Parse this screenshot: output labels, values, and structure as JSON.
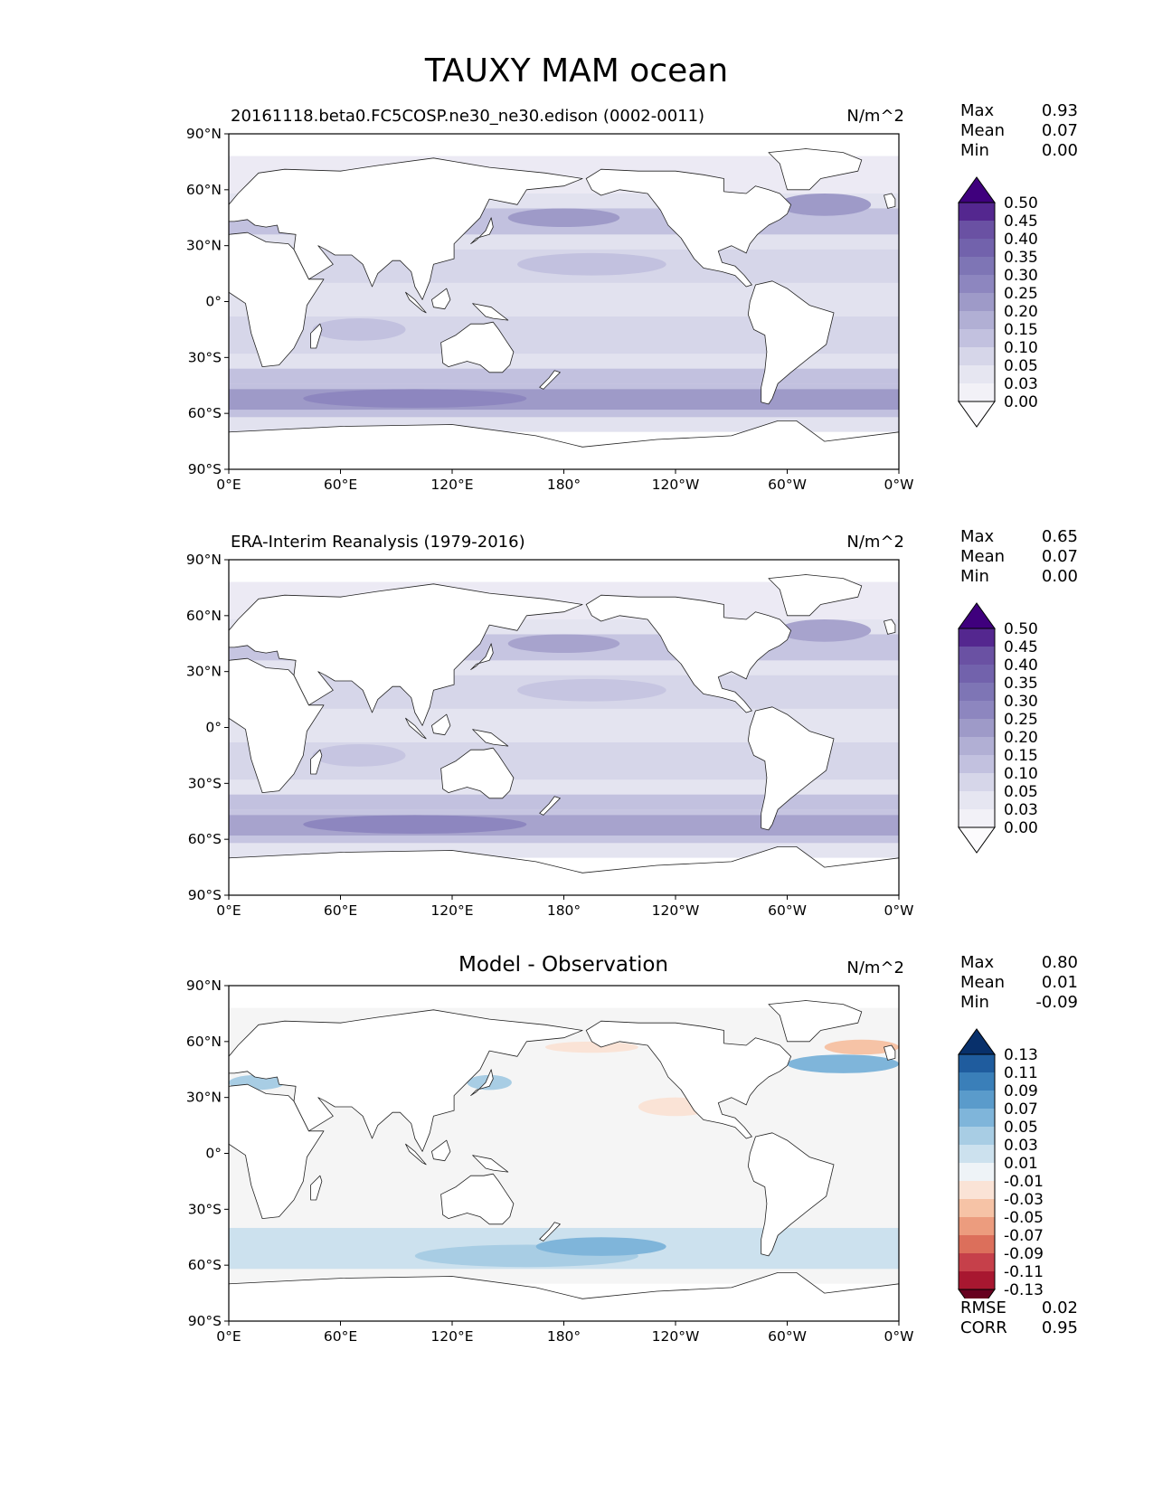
{
  "figure": {
    "title": "TAUXY MAM ocean"
  },
  "axes": {
    "lat_labels": [
      "90°N",
      "60°N",
      "30°N",
      "0°",
      "30°S",
      "60°S",
      "90°S"
    ],
    "lon_labels": [
      "0°E",
      "60°E",
      "120°E",
      "180°",
      "120°W",
      "60°W",
      "0°W"
    ]
  },
  "panels": [
    {
      "title": "20161118.beta0.FC5COSP.ne30_ne30.edison (0002-0011)",
      "units": "N/m^2",
      "stats": [
        {
          "label": "Max",
          "value": "0.93"
        },
        {
          "label": "Mean",
          "value": "0.07"
        },
        {
          "label": "Min",
          "value": "0.00"
        }
      ],
      "colorbar": {
        "levels": [
          "0.50",
          "0.45",
          "0.40",
          "0.35",
          "0.30",
          "0.25",
          "0.20",
          "0.15",
          "0.10",
          "0.05",
          "0.03",
          "0.00"
        ],
        "colors": [
          "#3f007d",
          "#54278f",
          "#6a51a3",
          "#7262ac",
          "#7e75b5",
          "#8d86bf",
          "#9e9ac8",
          "#b1afd4",
          "#c2c1df",
          "#d6d6e9",
          "#e6e6f1",
          "#f2f1f7",
          "#fcfbfd"
        ]
      },
      "map": {
        "style": "tau",
        "storm_track_level": "#9e9ac8",
        "band_level": "#c2c1df",
        "background": "#e2e2ef"
      }
    },
    {
      "title": "ERA-Interim Reanalysis (1979-2016)",
      "units": "N/m^2",
      "stats": [
        {
          "label": "Max",
          "value": "0.65"
        },
        {
          "label": "Mean",
          "value": "0.07"
        },
        {
          "label": "Min",
          "value": "0.00"
        }
      ],
      "colorbar": {
        "levels": [
          "0.50",
          "0.45",
          "0.40",
          "0.35",
          "0.30",
          "0.25",
          "0.20",
          "0.15",
          "0.10",
          "0.05",
          "0.03",
          "0.00"
        ],
        "colors": [
          "#3f007d",
          "#54278f",
          "#6a51a3",
          "#7262ac",
          "#7e75b5",
          "#8d86bf",
          "#9e9ac8",
          "#b1afd4",
          "#c2c1df",
          "#d6d6e9",
          "#e6e6f1",
          "#f2f1f7",
          "#fcfbfd"
        ]
      },
      "map": {
        "style": "tau",
        "storm_track_level": "#a7a3cd",
        "band_level": "#c6c5e1",
        "background": "#e4e4f0"
      }
    },
    {
      "title": "Model - Observation",
      "units": "N/m^2",
      "stats": [
        {
          "label": "Max",
          "value": "0.80"
        },
        {
          "label": "Mean",
          "value": "0.01"
        },
        {
          "label": "Min",
          "value": "-0.09"
        }
      ],
      "colorbar": {
        "levels": [
          "0.13",
          "0.11",
          "0.09",
          "0.07",
          "0.05",
          "0.03",
          "0.01",
          "-0.01",
          "-0.03",
          "-0.05",
          "-0.07",
          "-0.09",
          "-0.11",
          "-0.13"
        ],
        "colors": [
          "#08306b",
          "#1f5c9e",
          "#3a7fb9",
          "#5a9bcb",
          "#7fb5da",
          "#a8cde4",
          "#cce1ee",
          "#eef3f7",
          "#fae3d6",
          "#f6c3a6",
          "#ec9c7e",
          "#dc6f5b",
          "#c6404a",
          "#a81730",
          "#67001f"
        ]
      },
      "map": {
        "style": "diff",
        "background": "#f5f5f5"
      },
      "footer": [
        {
          "label": "RMSE",
          "value": "0.02"
        },
        {
          "label": "CORR",
          "value": "0.95"
        }
      ]
    }
  ]
}
